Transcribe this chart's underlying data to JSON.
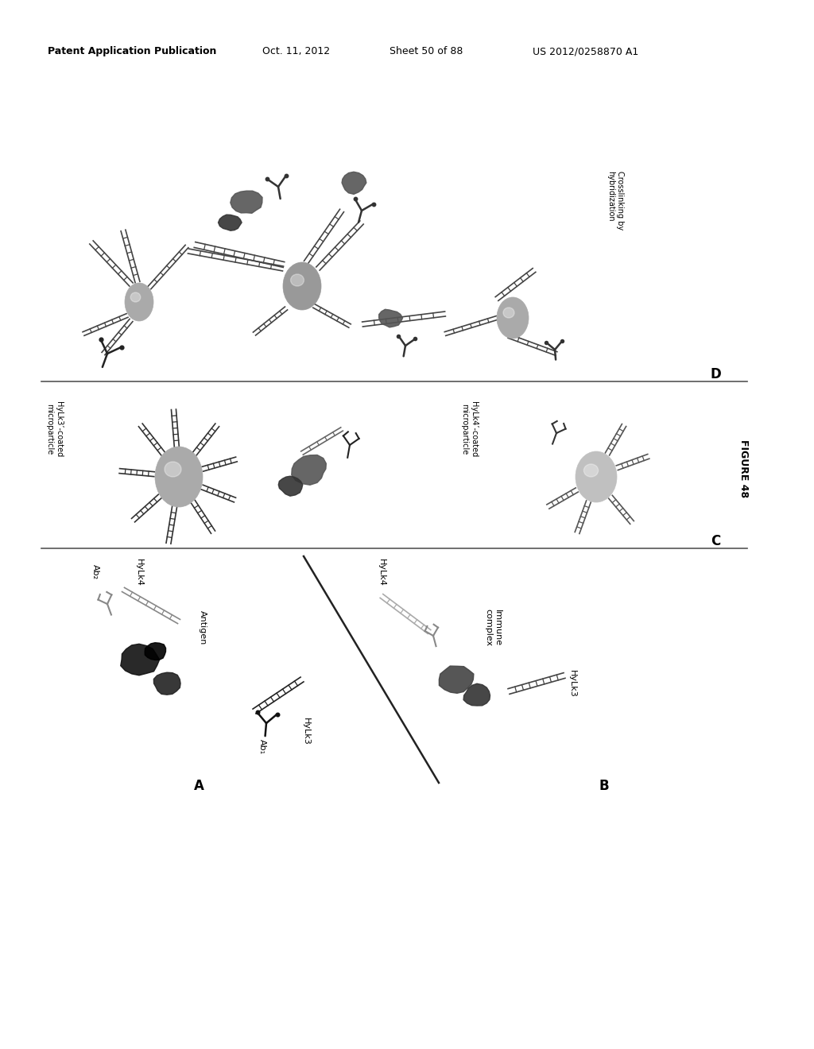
{
  "background_color": "#ffffff",
  "header_text": "Patent Application Publication",
  "header_date": "Oct. 11, 2012",
  "header_sheet": "Sheet 50 of 88",
  "header_patent": "US 2012/0258870 A1",
  "figure_label": "FIGURE 48",
  "text_color": "#000000"
}
